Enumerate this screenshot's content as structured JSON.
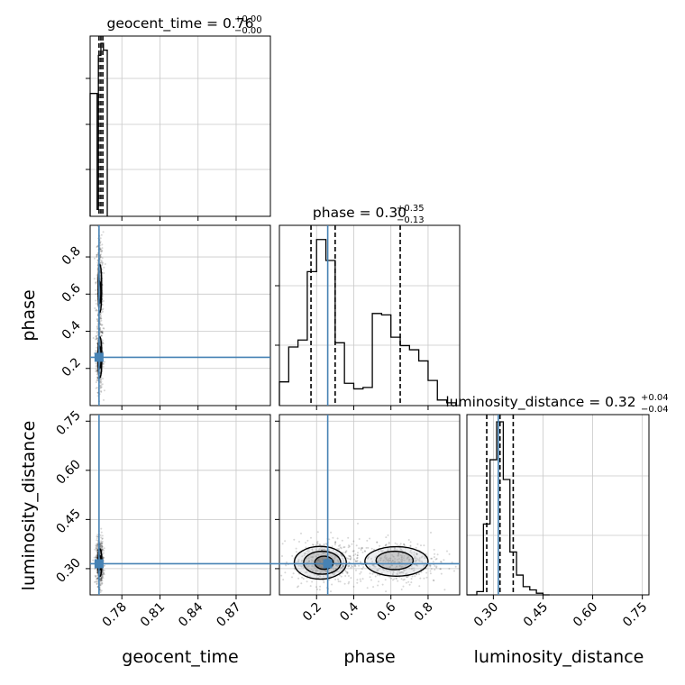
{
  "chart_data": {
    "type": "corner",
    "parameters": [
      "geocent_time",
      "phase",
      "luminosity_distance"
    ],
    "injection": {
      "geocent_time": 0.762,
      "phase": 0.26,
      "luminosity_distance": 0.315
    },
    "colors": {
      "injection": "#4682b4",
      "hist": "#000000",
      "contour": "#000000",
      "grid": "#c8c8c8"
    },
    "titles": [
      {
        "label": "geocent_time = 0.76",
        "sup": "+0.00",
        "sub": "−0.00"
      },
      {
        "label": "phase = 0.30",
        "sup": "+0.35",
        "sub": "−0.13"
      },
      {
        "label": "luminosity_distance = 0.32",
        "sup": "+0.04",
        "sub": "−0.04"
      }
    ],
    "xlabels": [
      "geocent_time",
      "phase",
      "luminosity_distance"
    ],
    "ylabels": [
      "phase",
      "luminosity_distance"
    ],
    "ticks": {
      "geocent_time": [
        "0.78",
        "0.81",
        "0.84",
        "0.87"
      ],
      "phase": [
        "0.2",
        "0.4",
        "0.6",
        "0.8"
      ],
      "luminosity_distance": [
        "0.30",
        "0.45",
        "0.60",
        "0.75"
      ]
    },
    "ranges": {
      "geocent_time": [
        0.755,
        0.897
      ],
      "phase": [
        0.0,
        0.97
      ],
      "luminosity_distance": [
        0.22,
        0.77
      ]
    },
    "hist_geocent_time": {
      "edges": [
        0.755,
        0.7605,
        0.7615,
        0.7635,
        0.7655,
        0.7685
      ],
      "values": [
        0.71,
        0.04,
        0.93,
        1.0,
        0.96
      ]
    },
    "hist_phase": {
      "edges": [
        0.0,
        0.05,
        0.1,
        0.15,
        0.2,
        0.25,
        0.3,
        0.35,
        0.4,
        0.45,
        0.5,
        0.55,
        0.6,
        0.65,
        0.7,
        0.75,
        0.8,
        0.85,
        0.9,
        0.95
      ],
      "values": [
        0.17,
        0.42,
        0.47,
        0.96,
        1.19,
        1.04,
        0.45,
        0.16,
        0.12,
        0.13,
        0.66,
        0.65,
        0.49,
        0.43,
        0.4,
        0.32,
        0.18,
        0.04,
        0.02
      ]
    },
    "hist_luminosity_distance": {
      "edges": [
        0.22,
        0.25,
        0.27,
        0.29,
        0.31,
        0.33,
        0.35,
        0.37,
        0.39,
        0.41,
        0.43,
        0.45,
        0.47
      ],
      "values": [
        0.0,
        0.02,
        0.43,
        0.82,
        1.05,
        0.7,
        0.26,
        0.12,
        0.05,
        0.03,
        0.01,
        0.0
      ],
      "quantiles": [
        0.28,
        0.32,
        0.36
      ]
    },
    "quantiles": {
      "geocent_time": [
        0.762,
        0.7635,
        0.765
      ],
      "phase": [
        0.17,
        0.3,
        0.65
      ]
    }
  }
}
